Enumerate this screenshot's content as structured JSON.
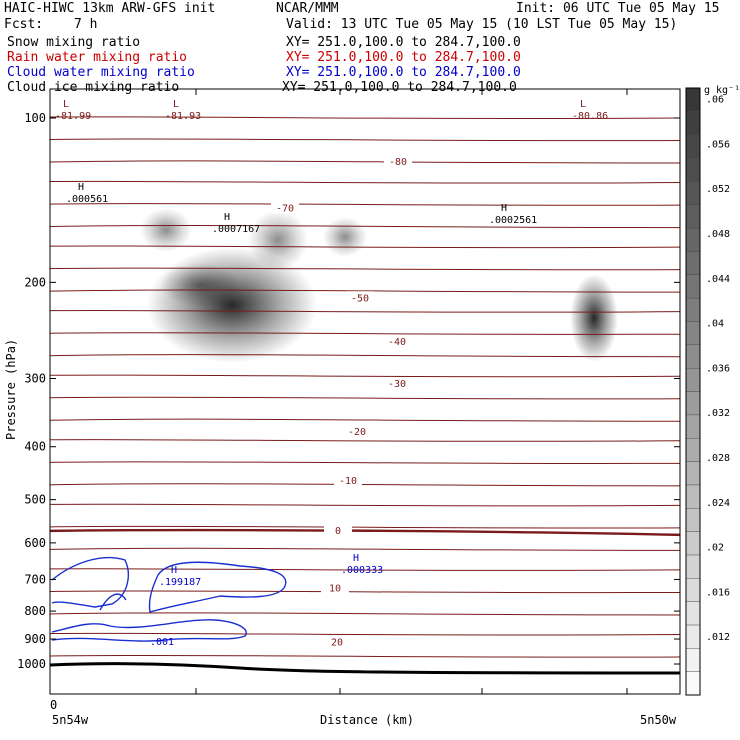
{
  "header": {
    "model": "HAIC-HIWC 13km ARW-GFS init",
    "org": "NCAR/MMM",
    "init": "Init: 06 UTC Tue 05 May 15",
    "fcst_label": "Fcst:",
    "fcst_value": "7 h",
    "valid": "Valid: 13 UTC Tue 05 May 15 (10 LST Tue 05 May 15)"
  },
  "fields": [
    {
      "name": "Snow mixing ratio",
      "xy": "XY= 251.0,100.0 to 284.7,100.0",
      "color": "#000000"
    },
    {
      "name": "Rain water mixing ratio",
      "xy": "XY= 251.0,100.0 to 284.7,100.0",
      "color": "#cc0000"
    },
    {
      "name": "Cloud water mixing ratio",
      "xy": "XY= 251.0,100.0 to 284.7,100.0",
      "color": "#0000cc"
    },
    {
      "name": "Cloud ice mixing ratio",
      "xy": "XY= 251.0,100.0 to 284.7,100.0",
      "color": "#000000"
    }
  ],
  "chart_data": {
    "type": "heatmap",
    "xlabel": "Distance (km)",
    "ylabel": "Pressure (hPa)",
    "x_start_label": "5n54w",
    "x_end_label": "5n50w",
    "x_origin_label": "0",
    "yticks": [
      100,
      200,
      300,
      400,
      500,
      600,
      700,
      800,
      900,
      1000
    ],
    "yscale": "log",
    "colorbar": {
      "unit": "g kg⁻¹",
      "ticks": [
        ".012",
        ".016",
        ".02",
        ".024",
        ".028",
        ".032",
        ".036",
        ".04",
        ".044",
        ".048",
        ".052",
        ".056",
        ".06"
      ]
    },
    "temperature_contours": [
      {
        "label": "-80",
        "p": 120
      },
      {
        "label": "-70",
        "p": 146
      },
      {
        "label": "-50",
        "p": 213
      },
      {
        "label": "-40",
        "p": 256
      },
      {
        "label": "-30",
        "p": 306
      },
      {
        "label": "-20",
        "p": 374
      },
      {
        "label": "-10",
        "p": 460
      },
      {
        "label": "0",
        "p": 568
      },
      {
        "label": "10",
        "p": 725
      },
      {
        "label": "20",
        "p": 910
      }
    ],
    "extrema": [
      {
        "type": "L",
        "value": "-81.99",
        "color": "#7a1a1a"
      },
      {
        "type": "L",
        "value": "-81.93",
        "color": "#7a1a1a"
      },
      {
        "type": "L",
        "value": "-80.86",
        "color": "#7a1a1a"
      },
      {
        "type": "H",
        "value": ".000561",
        "color": "#000000"
      },
      {
        "type": "H",
        "value": ".0007167",
        "color": "#000000"
      },
      {
        "type": "H",
        "value": ".0002561",
        "color": "#000000"
      },
      {
        "type": "H",
        "value": ".199187",
        "color": "#0000cc"
      },
      {
        "type": "H",
        "value": ".000333",
        "color": "#0000cc"
      }
    ],
    "cloud_water_contour_label": ".001"
  }
}
